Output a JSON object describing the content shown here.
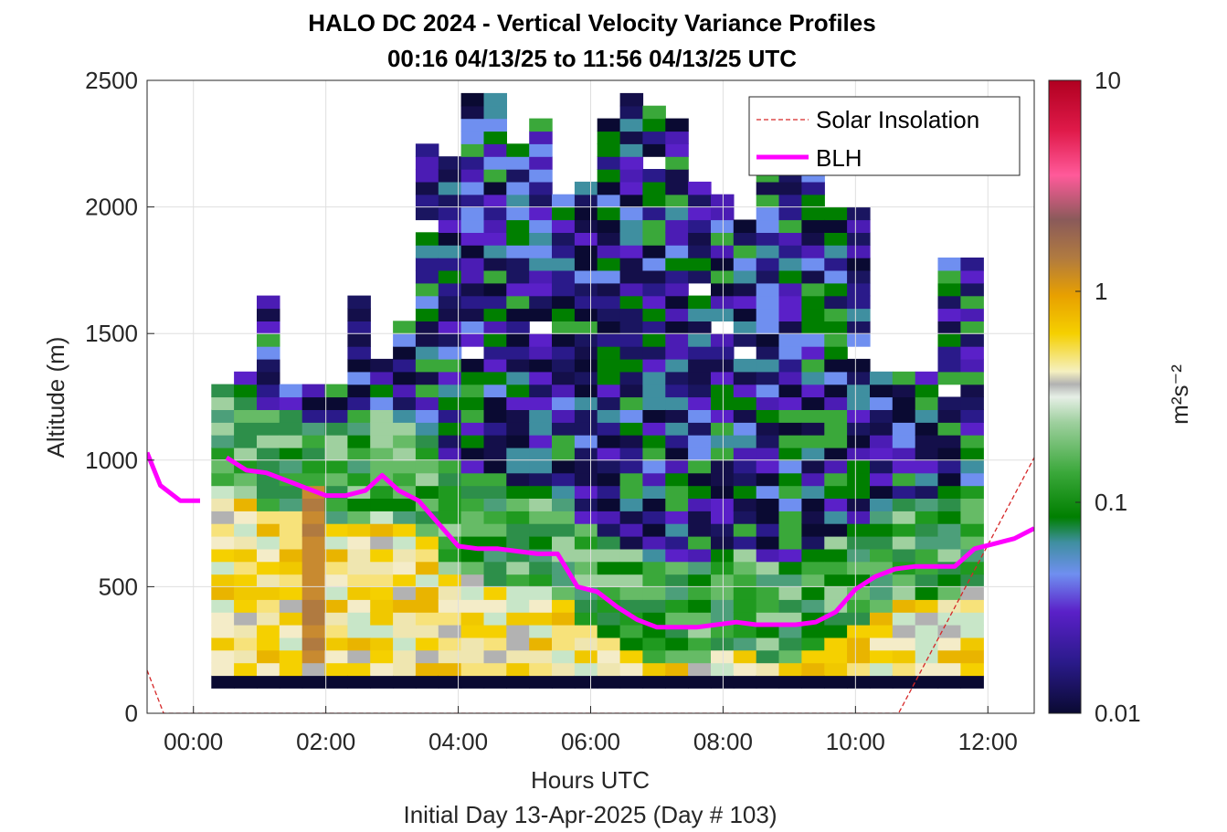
{
  "chart_data": {
    "type": "heatmap",
    "title_line1": "HALO DC 2024 - Vertical Velocity Variance Profiles",
    "title_line2": "00:16 04/13/25 to 11:56 04/13/25  UTC",
    "xlabel": "Hours UTC",
    "xlabel2": "Initial Day 13-Apr-2025 (Day # 103)",
    "ylabel": "Altitude (m)",
    "colorbar_label": "m²s⁻²",
    "colorbar_scale": "log",
    "colorbar_range": [
      0.01,
      10
    ],
    "colorbar_ticks": [
      "0.01",
      "0.1",
      "1",
      "10"
    ],
    "xlim_hours": [
      -0.7,
      12.7
    ],
    "ylim": [
      0,
      2500
    ],
    "x_ticks": [
      "00:00",
      "02:00",
      "04:00",
      "06:00",
      "08:00",
      "10:00",
      "12:00"
    ],
    "y_ticks": [
      "0",
      "500",
      "1000",
      "1500",
      "2000",
      "2500"
    ],
    "grid": true,
    "legend_position": "top-right",
    "legend": [
      "Solar Insolation",
      "BLH"
    ],
    "heatmap_time_hours": [
      0.27,
      11.93
    ],
    "heatmap_altitude_m": [
      100,
      2450
    ],
    "blh": {
      "name": "BLH",
      "color": "#ff00ff",
      "segment1": {
        "t": [
          -0.7,
          -0.5,
          -0.2,
          0.1
        ],
        "z": [
          1030,
          900,
          840,
          840
        ]
      },
      "segment2": {
        "t": [
          0.5,
          0.8,
          1.1,
          1.4,
          1.7,
          2.0,
          2.3,
          2.6,
          2.85,
          3.1,
          3.4,
          3.7,
          4.0,
          4.3,
          4.6,
          4.9,
          5.2,
          5.5,
          5.8,
          6.1,
          6.4,
          6.7,
          7.0,
          7.3,
          7.6,
          7.9,
          8.2,
          8.5,
          8.8,
          9.1,
          9.4,
          9.7,
          10.0,
          10.3,
          10.6,
          10.9,
          11.2,
          11.5,
          11.8,
          12.1,
          12.4,
          12.7
        ],
        "z": [
          1010,
          960,
          950,
          920,
          890,
          860,
          860,
          880,
          940,
          880,
          840,
          750,
          660,
          650,
          650,
          640,
          630,
          630,
          500,
          480,
          420,
          370,
          340,
          340,
          340,
          350,
          360,
          350,
          350,
          350,
          360,
          400,
          490,
          540,
          570,
          580,
          580,
          580,
          650,
          670,
          690,
          730
        ]
      }
    },
    "solar_insolation": {
      "name": "Solar Insolation",
      "color": "#d62728",
      "t": [
        -0.7,
        -0.45,
        10.65,
        12.7
      ],
      "z": [
        170,
        0,
        0,
        1010
      ]
    }
  },
  "colors": {
    "blh": "#ff00ff",
    "solar": "#d62728",
    "grid": "#dfdfdf"
  }
}
